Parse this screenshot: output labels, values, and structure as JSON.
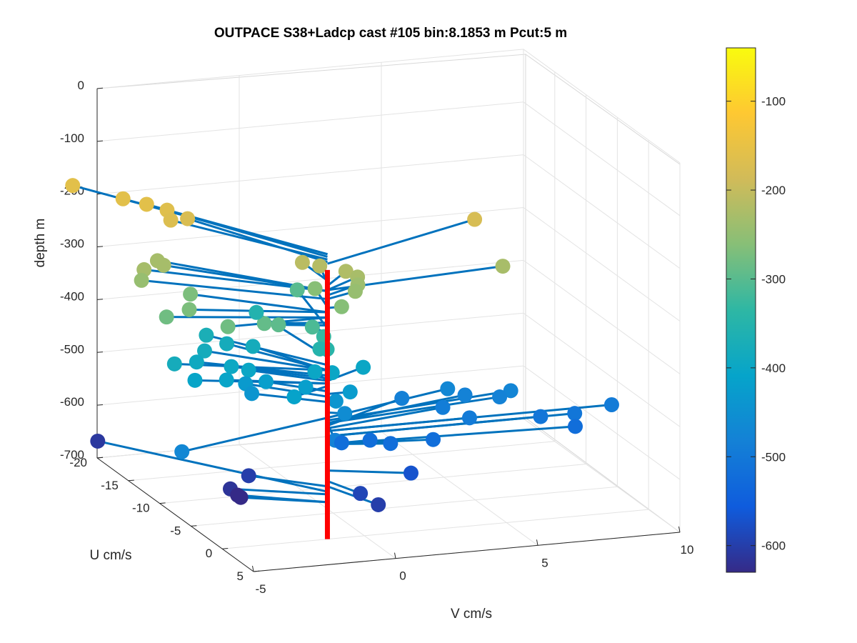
{
  "chart_data": {
    "type": "scatter3d",
    "title": "OUTPACE S38+Ladcp cast #105 bin:8.1853 m  Pcut:5 m",
    "xlabel": "U cm/s",
    "ylabel": "V cm/s",
    "zlabel": "depth m",
    "xlim": [
      -20,
      5
    ],
    "ylim": [
      -5,
      10
    ],
    "zlim": [
      -700,
      0
    ],
    "xticks": [
      -20,
      -15,
      -10,
      -5,
      0,
      5
    ],
    "yticks": [
      -5,
      0,
      5,
      10
    ],
    "zticks": [
      0,
      -100,
      -200,
      -300,
      -400,
      -500,
      -600,
      -700
    ],
    "grid": true,
    "colormap": "parula",
    "colorbar": {
      "ticks": [
        -100,
        -200,
        -300,
        -400,
        -500,
        -600
      ],
      "clim": [
        -630,
        -40
      ]
    },
    "axis_origin": {
      "u": 0,
      "v": -1.3
    },
    "axis_depth_range": [
      -190,
      -700
    ],
    "axis_color": "#ff0000",
    "stick_color": "#0072bd",
    "points": [
      {
        "u": -18,
        "v": -5,
        "d": -160
      },
      {
        "u": -14.5,
        "v": -4,
        "d": -160
      },
      {
        "u": -13,
        "v": -3.5,
        "d": -160
      },
      {
        "u": -12,
        "v": -3,
        "d": -165
      },
      {
        "u": -10.5,
        "v": -3.2,
        "d": -170
      },
      {
        "u": -11,
        "v": -2.5,
        "d": -175
      },
      {
        "u": -8,
        "v": -4,
        "d": -230
      },
      {
        "u": -7.5,
        "v": -4.8,
        "d": -230
      },
      {
        "u": -7,
        "v": -5,
        "d": -245
      },
      {
        "u": -9,
        "v": -4,
        "d": -230
      },
      {
        "u": -3,
        "v": -5,
        "d": -280
      },
      {
        "u": -3,
        "v": -4.2,
        "d": -270
      },
      {
        "u": 0,
        "v": -3.5,
        "d": -280
      },
      {
        "u": -1,
        "v": -2,
        "d": -290
      },
      {
        "u": -6,
        "v": -3.5,
        "d": -270
      },
      {
        "u": -1,
        "v": -1.5,
        "d": -295
      },
      {
        "u": -8,
        "v": 0.7,
        "d": -300
      },
      {
        "u": -3.8,
        "v": 0.4,
        "d": -260
      },
      {
        "u": -1.5,
        "v": -0.2,
        "d": -310
      },
      {
        "u": -1.5,
        "v": 0.2,
        "d": -330
      },
      {
        "u": -1.2,
        "v": 0,
        "d": -350
      },
      {
        "u": -0.5,
        "v": 0.1,
        "d": -345
      },
      {
        "u": -4,
        "v": 0,
        "d": -210
      },
      {
        "u": -3.5,
        "v": 0.5,
        "d": -215
      },
      {
        "u": -2.5,
        "v": 1.2,
        "d": -220
      },
      {
        "u": -2,
        "v": 1.5,
        "d": -228
      },
      {
        "u": -1.5,
        "v": 1.4,
        "d": -238
      },
      {
        "u": -1,
        "v": 1.2,
        "d": -245
      },
      {
        "u": 0,
        "v": 0.5,
        "d": -262
      },
      {
        "u": -6,
        "v": 6.5,
        "d": -178
      },
      {
        "u": -1.5,
        "v": 6.5,
        "d": -228
      },
      {
        "u": -6,
        "v": -1.3,
        "d": -380
      },
      {
        "u": -10,
        "v": -0.3,
        "d": -355
      },
      {
        "u": 1.5,
        "v": -1.5,
        "d": -410
      },
      {
        "u": 4,
        "v": -6,
        "d": -470
      },
      {
        "u": -4,
        "v": -4.5,
        "d": -380
      },
      {
        "u": -3,
        "v": -4,
        "d": -405
      },
      {
        "u": -2.5,
        "v": -3,
        "d": -405
      },
      {
        "u": -6,
        "v": -3,
        "d": -380
      },
      {
        "u": -7,
        "v": -2,
        "d": -380
      },
      {
        "u": -8,
        "v": -2.5,
        "d": -370
      },
      {
        "u": -5,
        "v": -3.5,
        "d": -390
      },
      {
        "u": -4,
        "v": -2.5,
        "d": -395
      },
      {
        "u": -3.5,
        "v": -2,
        "d": -400
      },
      {
        "u": -3,
        "v": -1.5,
        "d": -420
      },
      {
        "u": -4,
        "v": -2,
        "d": -430
      },
      {
        "u": -3,
        "v": -2,
        "d": -440
      },
      {
        "u": -1.2,
        "v": -0.5,
        "d": -420
      },
      {
        "u": -2,
        "v": 0,
        "d": -400
      },
      {
        "u": -1.5,
        "v": 0.5,
        "d": -400
      },
      {
        "u": 0,
        "v": 0.8,
        "d": -425
      },
      {
        "u": 0,
        "v": 0.3,
        "d": -440
      },
      {
        "u": -2,
        "v": 1.7,
        "d": -400
      },
      {
        "u": 0.5,
        "v": 0.5,
        "d": -460
      },
      {
        "u": 3.5,
        "v": -0.5,
        "d": -480
      },
      {
        "u": 0,
        "v": 0.5,
        "d": -520
      },
      {
        "u": 0,
        "v": 1.5,
        "d": -520
      },
      {
        "u": 1,
        "v": 2,
        "d": -520
      },
      {
        "u": 1,
        "v": 3.5,
        "d": -520
      },
      {
        "u": -4,
        "v": 3.5,
        "d": -485
      },
      {
        "u": -2,
        "v": 4.5,
        "d": -490
      },
      {
        "u": -3.5,
        "v": 5,
        "d": -470
      },
      {
        "u": -3,
        "v": 5.5,
        "d": -480
      },
      {
        "u": 0,
        "v": 5,
        "d": -495
      },
      {
        "u": -2,
        "v": 6.5,
        "d": -480
      },
      {
        "u": -2.5,
        "v": 7,
        "d": -475
      },
      {
        "u": 0,
        "v": 7.5,
        "d": -505
      },
      {
        "u": 0,
        "v": 8.7,
        "d": -505
      },
      {
        "u": 0,
        "v": 10,
        "d": -495
      },
      {
        "u": 1,
        "v": 8.5,
        "d": -520
      },
      {
        "u": 2,
        "v": 2.5,
        "d": -570
      },
      {
        "u": 4.5,
        "v": 0.8,
        "d": -600
      },
      {
        "u": 3,
        "v": 0.5,
        "d": -590
      },
      {
        "u": -14,
        "v": -5,
        "d": -610
      },
      {
        "u": -3.5,
        "v": -2,
        "d": -600
      },
      {
        "u": -3,
        "v": -2.5,
        "d": -630
      },
      {
        "u": -2.5,
        "v": -2.5,
        "d": -630
      },
      {
        "u": -2.8,
        "v": -2.8,
        "d": -615
      }
    ]
  }
}
